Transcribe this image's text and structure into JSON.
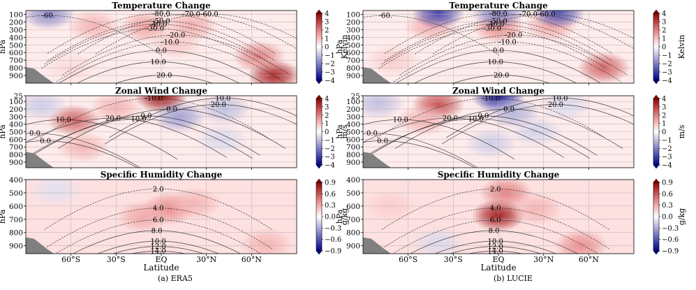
{
  "figure": {
    "captions": [
      "(a) ERA5",
      "(b) LUCIE"
    ],
    "xlabel": "Latitude",
    "lat_ticks": [
      {
        "lat": -60,
        "label": "60°S"
      },
      {
        "lat": -30,
        "label": "30°S"
      },
      {
        "lat": 0,
        "label": "EQ"
      },
      {
        "lat": 30,
        "label": "30°N"
      },
      {
        "lat": 60,
        "label": "60°N"
      }
    ],
    "lat_range": [
      -90,
      90
    ]
  },
  "chart_data": [
    {
      "type": "heatmap",
      "variant": "contourf+contour",
      "column": "ERA5",
      "title": "Temperature Change",
      "ylabel": "hPa",
      "colorbar_label": "Kelvin",
      "colormap": "bwr",
      "cmin": -4,
      "cmax": 4,
      "colorbar_ticks": [
        "4",
        "3",
        "2",
        "1",
        "0",
        "−1",
        "−2",
        "−3",
        "−4"
      ],
      "yticks": [
        100,
        200,
        300,
        400,
        500,
        600,
        700,
        800,
        900
      ],
      "ylim": [
        50,
        1000
      ],
      "field_blobs": [
        {
          "lat": -45,
          "p": 250,
          "v": 1.2
        },
        {
          "lat": -10,
          "p": 260,
          "v": 1.5
        },
        {
          "lat": 20,
          "p": 250,
          "v": 1.3
        },
        {
          "lat": 75,
          "p": 900,
          "v": 3.5
        },
        {
          "lat": 65,
          "p": 650,
          "v": 2.0
        },
        {
          "lat": -75,
          "p": 95,
          "v": -1.8
        },
        {
          "lat": 10,
          "p": 480,
          "v": 0.9
        },
        {
          "lat": -60,
          "p": 800,
          "v": 0.6
        }
      ],
      "contours": [
        {
          "label": "-80.0",
          "lat": 0,
          "p": 90,
          "dashed": true
        },
        {
          "label": "-70.0",
          "lat": 20,
          "p": 97,
          "dashed": true
        },
        {
          "label": "-60.0",
          "lat": 32,
          "p": 95,
          "dashed": true
        },
        {
          "label": "-60.",
          "lat": -75,
          "p": 115,
          "dashed": true
        },
        {
          "label": "-50.0",
          "lat": 0,
          "p": 185,
          "dashed": true
        },
        {
          "label": "-40.0",
          "lat": -2,
          "p": 230,
          "dashed": true
        },
        {
          "label": "-30.0",
          "lat": -4,
          "p": 285,
          "dashed": true
        },
        {
          "label": "-20.0",
          "lat": 10,
          "p": 370,
          "dashed": true
        },
        {
          "label": "-10.0",
          "lat": 6,
          "p": 460,
          "dashed": true
        },
        {
          "label": "0.0",
          "lat": 0,
          "p": 570,
          "dashed": false
        },
        {
          "label": "10.0",
          "lat": -2,
          "p": 720,
          "dashed": false
        },
        {
          "label": "20.0",
          "lat": 2,
          "p": 895,
          "dashed": false
        }
      ]
    },
    {
      "type": "heatmap",
      "variant": "contourf+contour",
      "column": "ERA5",
      "title": "Zonal Wind Change",
      "ylabel": "hPa",
      "colorbar_label": "m/s",
      "colormap": "bwr",
      "cmin": -4,
      "cmax": 4,
      "colorbar_ticks": [
        "4",
        "3",
        "2",
        "1",
        "0",
        "−1",
        "−2",
        "−3",
        "−4"
      ],
      "yticks": [
        25,
        100,
        200,
        300,
        400,
        500,
        600,
        700,
        800,
        900
      ],
      "ylim": [
        25,
        975
      ],
      "field_blobs": [
        {
          "lat": -58,
          "p": 350,
          "v": 2.5
        },
        {
          "lat": -52,
          "p": 700,
          "v": 1.2
        },
        {
          "lat": 0,
          "p": 40,
          "v": 3.8
        },
        {
          "lat": 12,
          "p": 300,
          "v": -1.5
        },
        {
          "lat": 42,
          "p": 200,
          "v": -1.0
        },
        {
          "lat": -80,
          "p": 150,
          "v": -0.8
        },
        {
          "lat": 40,
          "p": 600,
          "v": -0.6
        },
        {
          "lat": -30,
          "p": 180,
          "v": 1.2
        }
      ],
      "contours": [
        {
          "label": "-10.0",
          "lat": -5,
          "p": 55,
          "dashed": true
        },
        {
          "label": "10.0",
          "lat": 41,
          "p": 55,
          "dashed": false
        },
        {
          "label": "20.0",
          "lat": 38,
          "p": 140,
          "dashed": false
        },
        {
          "label": "10.0",
          "lat": -65,
          "p": 340,
          "dashed": false
        },
        {
          "label": "20.0",
          "lat": -32,
          "p": 320,
          "dashed": false
        },
        {
          "label": "10.0",
          "lat": -15,
          "p": 330,
          "dashed": false
        },
        {
          "label": "0.0",
          "lat": -10,
          "p": 290,
          "dashed": false
        },
        {
          "label": "0.0",
          "lat": 7,
          "p": 200,
          "dashed": false
        },
        {
          "label": "0.0",
          "lat": -84,
          "p": 520,
          "dashed": false
        },
        {
          "label": "0.0",
          "lat": -77,
          "p": 620,
          "dashed": false
        }
      ]
    },
    {
      "type": "heatmap",
      "variant": "contourf+contour",
      "column": "ERA5",
      "title": "Specific Humidity Change",
      "ylabel": "hPa",
      "colorbar_label": "g/kg",
      "colormap": "bwr",
      "cmin": -1,
      "cmax": 1,
      "colorbar_ticks": [
        "0.9",
        "0.6",
        "0.3",
        "0.0",
        "−0.3",
        "−0.6",
        "−0.9"
      ],
      "yticks": [
        400,
        500,
        600,
        700,
        800,
        900
      ],
      "ylim": [
        400,
        960
      ],
      "field_blobs": [
        {
          "lat": 5,
          "p": 620,
          "v": 0.45
        },
        {
          "lat": -12,
          "p": 680,
          "v": 0.35
        },
        {
          "lat": 22,
          "p": 580,
          "v": 0.3
        },
        {
          "lat": 70,
          "p": 890,
          "v": 0.3
        },
        {
          "lat": -70,
          "p": 480,
          "v": -0.12
        }
      ],
      "contours": [
        {
          "label": "2.0",
          "lat": -2,
          "p": 470,
          "dashed": true
        },
        {
          "label": "4.0",
          "lat": -2,
          "p": 615,
          "dashed": true
        },
        {
          "label": "6.0",
          "lat": -2,
          "p": 705,
          "dashed": true
        },
        {
          "label": "8.0",
          "lat": -3,
          "p": 785,
          "dashed": false
        },
        {
          "label": "10.0",
          "lat": -2,
          "p": 865,
          "dashed": false
        },
        {
          "label": "12.0",
          "lat": -2,
          "p": 905,
          "dashed": false
        },
        {
          "label": "14.0",
          "lat": -2,
          "p": 940,
          "dashed": false
        }
      ]
    },
    {
      "type": "heatmap",
      "variant": "contourf+contour",
      "column": "LUCIE",
      "title": "Temperature Change",
      "ylabel": "hPa",
      "colorbar_label": "Kelvin",
      "colormap": "bwr",
      "cmin": -4,
      "cmax": 4,
      "colorbar_ticks": [
        "4",
        "3",
        "2",
        "1",
        "0",
        "−1",
        "−2",
        "−3",
        "−4"
      ],
      "yticks": [
        100,
        200,
        300,
        400,
        500,
        600,
        700,
        800,
        900
      ],
      "ylim": [
        50,
        1000
      ],
      "field_blobs": [
        {
          "lat": -45,
          "p": 250,
          "v": 1.3
        },
        {
          "lat": 0,
          "p": 270,
          "v": 1.8
        },
        {
          "lat": 35,
          "p": 250,
          "v": 1.4
        },
        {
          "lat": 70,
          "p": 800,
          "v": 2.5
        },
        {
          "lat": -40,
          "p": 80,
          "v": -3.0
        },
        {
          "lat": 40,
          "p": 80,
          "v": -2.8
        },
        {
          "lat": 0,
          "p": 80,
          "v": -2.0
        },
        {
          "lat": -70,
          "p": 700,
          "v": 0.8
        }
      ],
      "contours": [
        {
          "label": "-80.0",
          "lat": 0,
          "p": 90,
          "dashed": true
        },
        {
          "label": "-70.0",
          "lat": 20,
          "p": 97,
          "dashed": true
        },
        {
          "label": "-60.0",
          "lat": 32,
          "p": 95,
          "dashed": true
        },
        {
          "label": "-60.",
          "lat": -75,
          "p": 115,
          "dashed": true
        },
        {
          "label": "-50.0",
          "lat": 0,
          "p": 185,
          "dashed": true
        },
        {
          "label": "-40.0",
          "lat": -2,
          "p": 230,
          "dashed": true
        },
        {
          "label": "-30.0",
          "lat": -4,
          "p": 285,
          "dashed": true
        },
        {
          "label": "-20.0",
          "lat": 10,
          "p": 370,
          "dashed": true
        },
        {
          "label": "-10.0",
          "lat": 6,
          "p": 460,
          "dashed": true
        },
        {
          "label": "0.0",
          "lat": 0,
          "p": 570,
          "dashed": false
        },
        {
          "label": "10.0",
          "lat": -2,
          "p": 720,
          "dashed": false
        },
        {
          "label": "20.0",
          "lat": 2,
          "p": 895,
          "dashed": false
        }
      ]
    },
    {
      "type": "heatmap",
      "variant": "contourf+contour",
      "column": "LUCIE",
      "title": "Zonal Wind Change",
      "ylabel": "hPa",
      "colorbar_label": "m/s",
      "colormap": "bwr",
      "cmin": -4,
      "cmax": 4,
      "colorbar_ticks": [
        "4",
        "3",
        "2",
        "1",
        "0",
        "−1",
        "−2",
        "−3",
        "−4"
      ],
      "yticks": [
        25,
        100,
        200,
        300,
        400,
        500,
        600,
        700,
        800,
        900
      ],
      "ylim": [
        25,
        975
      ],
      "field_blobs": [
        {
          "lat": -40,
          "p": 140,
          "v": 2.8
        },
        {
          "lat": -50,
          "p": 350,
          "v": 1.2
        },
        {
          "lat": 0,
          "p": 40,
          "v": -3.5
        },
        {
          "lat": 10,
          "p": 250,
          "v": -1.2
        },
        {
          "lat": -80,
          "p": 120,
          "v": -1.0
        },
        {
          "lat": 25,
          "p": 500,
          "v": -0.7
        },
        {
          "lat": -5,
          "p": 650,
          "v": -0.8
        },
        {
          "lat": 45,
          "p": 150,
          "v": -0.6
        }
      ],
      "contours": [
        {
          "label": "-10.0",
          "lat": -5,
          "p": 55,
          "dashed": true
        },
        {
          "label": "10.0",
          "lat": 41,
          "p": 55,
          "dashed": false
        },
        {
          "label": "20.0",
          "lat": 38,
          "p": 140,
          "dashed": false
        },
        {
          "label": "10.0",
          "lat": -65,
          "p": 340,
          "dashed": false
        },
        {
          "label": "20.0",
          "lat": -32,
          "p": 320,
          "dashed": false
        },
        {
          "label": "10.0",
          "lat": -15,
          "p": 330,
          "dashed": false
        },
        {
          "label": "0.0",
          "lat": -10,
          "p": 290,
          "dashed": false
        },
        {
          "label": "0.0",
          "lat": 7,
          "p": 200,
          "dashed": false
        },
        {
          "label": "0.0",
          "lat": -84,
          "p": 520,
          "dashed": false
        },
        {
          "label": "0.0",
          "lat": -77,
          "p": 620,
          "dashed": false
        }
      ]
    },
    {
      "type": "heatmap",
      "variant": "contourf+contour",
      "column": "LUCIE",
      "title": "Specific Humidity Change",
      "ylabel": "hPa",
      "colorbar_label": "g/kg",
      "colormap": "bwr",
      "cmin": -1,
      "cmax": 1,
      "colorbar_ticks": [
        "0.9",
        "0.6",
        "0.3",
        "0.0",
        "−0.3",
        "−0.6",
        "−0.9"
      ],
      "yticks": [
        400,
        500,
        600,
        700,
        800,
        900
      ],
      "ylim": [
        400,
        960
      ],
      "field_blobs": [
        {
          "lat": 0,
          "p": 670,
          "v": 0.9
        },
        {
          "lat": 5,
          "p": 500,
          "v": 0.5
        },
        {
          "lat": 25,
          "p": 620,
          "v": 0.3
        },
        {
          "lat": 55,
          "p": 900,
          "v": 0.45
        },
        {
          "lat": -40,
          "p": 880,
          "v": -0.15
        },
        {
          "lat": -72,
          "p": 600,
          "v": 0.2
        }
      ],
      "contours": [
        {
          "label": "2.0",
          "lat": -2,
          "p": 470,
          "dashed": true
        },
        {
          "label": "4.0",
          "lat": -2,
          "p": 615,
          "dashed": true
        },
        {
          "label": "6.0",
          "lat": -2,
          "p": 705,
          "dashed": true
        },
        {
          "label": "8.0",
          "lat": -3,
          "p": 785,
          "dashed": false
        },
        {
          "label": "10.0",
          "lat": -2,
          "p": 865,
          "dashed": false
        },
        {
          "label": "12.0",
          "lat": -2,
          "p": 905,
          "dashed": false
        },
        {
          "label": "14.0",
          "lat": -2,
          "p": 940,
          "dashed": false
        }
      ]
    }
  ]
}
